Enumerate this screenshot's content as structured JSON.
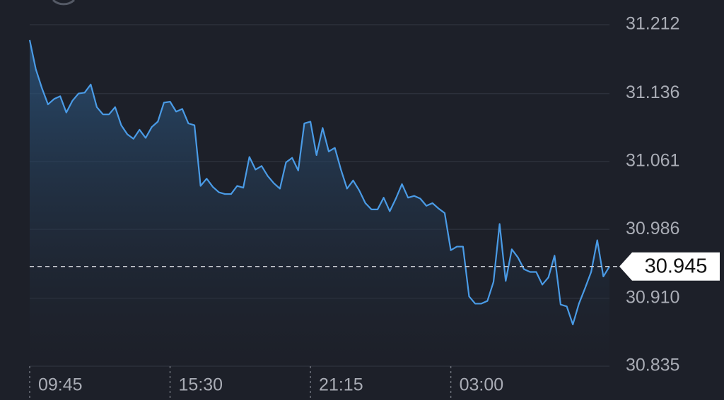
{
  "chart_data": {
    "type": "area",
    "color": "#4a9be6",
    "categories": [
      "09:45",
      null,
      null,
      null,
      null,
      null,
      null,
      null,
      null,
      null,
      null,
      null,
      null,
      null,
      null,
      null,
      null,
      null,
      null,
      null,
      null,
      null,
      null,
      "15:30",
      null,
      null,
      null,
      null,
      null,
      null,
      null,
      null,
      null,
      null,
      null,
      null,
      null,
      null,
      null,
      null,
      null,
      null,
      null,
      null,
      null,
      null,
      "21:15",
      null,
      null,
      null,
      null,
      null,
      null,
      null,
      null,
      null,
      null,
      null,
      null,
      null,
      null,
      null,
      null,
      null,
      null,
      null,
      null,
      null,
      null,
      "03:00",
      null,
      null,
      null,
      null,
      null,
      null,
      null,
      null,
      null,
      null,
      null,
      null,
      null,
      null,
      null,
      null,
      null,
      null,
      null,
      null,
      null,
      null,
      null,
      null,
      null,
      null
    ],
    "values": [
      31.195,
      31.163,
      31.142,
      31.124,
      31.13,
      31.133,
      31.115,
      31.128,
      31.136,
      31.137,
      31.146,
      31.121,
      31.113,
      31.113,
      31.121,
      31.101,
      31.091,
      31.086,
      31.096,
      31.087,
      31.099,
      31.105,
      31.126,
      31.127,
      31.116,
      31.119,
      31.103,
      31.101,
      31.034,
      31.042,
      31.033,
      31.027,
      31.025,
      31.025,
      31.034,
      31.032,
      31.066,
      31.052,
      31.056,
      31.045,
      31.037,
      31.031,
      31.06,
      31.065,
      31.051,
      31.103,
      31.105,
      31.068,
      31.098,
      31.072,
      31.076,
      31.052,
      31.031,
      31.04,
      31.029,
      31.015,
      31.008,
      31.008,
      31.021,
      31.006,
      31.02,
      31.036,
      31.021,
      31.023,
      31.02,
      31.012,
      31.015,
      31.009,
      31.004,
      30.963,
      30.967,
      30.967,
      30.912,
      30.904,
      30.904,
      30.907,
      30.928,
      30.992,
      30.929,
      30.964,
      30.955,
      30.942,
      30.939,
      30.939,
      30.925,
      30.933,
      30.957,
      30.903,
      30.901,
      30.881,
      30.904,
      30.921,
      30.939,
      30.974,
      30.934,
      30.945
    ],
    "last_value": 30.945,
    "ylim": [
      30.835,
      31.212
    ],
    "yticks": [
      31.212,
      31.136,
      31.061,
      30.986,
      {
        "value": 30.91,
        "label": "30.910"
      },
      30.835
    ],
    "grid": true
  }
}
